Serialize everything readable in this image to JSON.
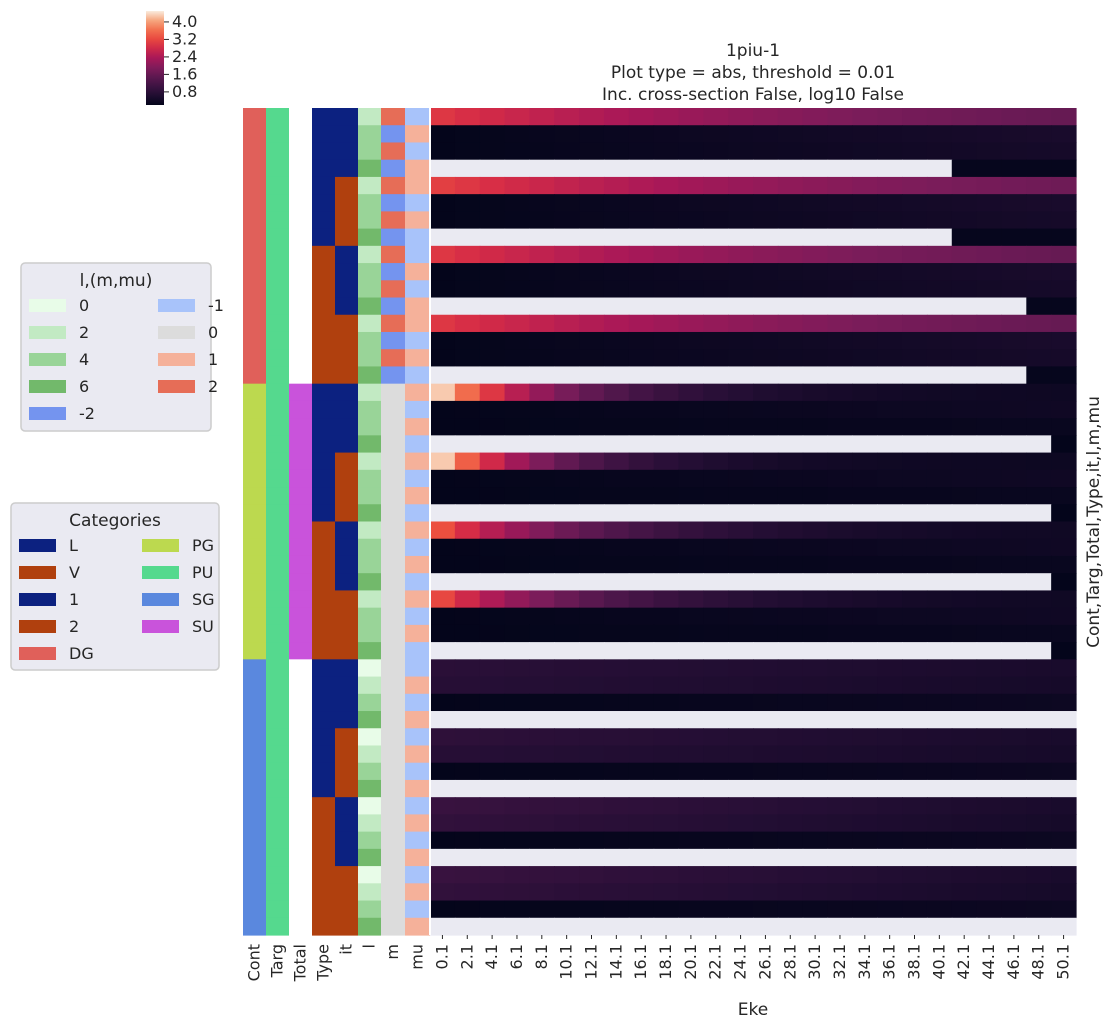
{
  "chart_data": {
    "type": "heatmap",
    "title_lines": [
      "1piu-1",
      "Plot type = abs, threshold = 0.01",
      "Inc. cross-section False, log10 False"
    ],
    "xlabel": "Eke",
    "ylabel": "Cont,Targ,Total,Type,it,l,m,mu",
    "x_ticks": [
      "0.1",
      "2.1",
      "4.1",
      "6.1",
      "8.1",
      "10.1",
      "12.1",
      "14.1",
      "16.1",
      "18.1",
      "20.1",
      "22.1",
      "24.1",
      "26.1",
      "28.1",
      "30.1",
      "32.1",
      "34.1",
      "36.1",
      "38.1",
      "40.1",
      "42.1",
      "44.1",
      "46.1",
      "48.1",
      "50.1"
    ],
    "annotation_columns": [
      "Cont",
      "Targ",
      "Total",
      "Type",
      "it",
      "l",
      "m",
      "mu"
    ],
    "colorbar": {
      "ticks": [
        "4.0",
        "3.2",
        "2.4",
        "1.6",
        "0.8"
      ],
      "tick_values": [
        4.0,
        3.2,
        2.4,
        1.6,
        0.8
      ],
      "range": [
        0.2,
        4.5
      ]
    },
    "annotation_rows": [
      [
        "DG",
        "PU",
        "",
        "L",
        "1",
        "2",
        "2",
        "-1"
      ],
      [
        "DG",
        "PU",
        "",
        "L",
        "1",
        "4",
        "-2",
        "1"
      ],
      [
        "DG",
        "PU",
        "",
        "L",
        "1",
        "4",
        "2",
        "-1"
      ],
      [
        "DG",
        "PU",
        "",
        "L",
        "1",
        "6",
        "-2",
        "1"
      ],
      [
        "DG",
        "PU",
        "",
        "L",
        "2",
        "2",
        "2",
        "1"
      ],
      [
        "DG",
        "PU",
        "",
        "L",
        "2",
        "4",
        "-2",
        "-1"
      ],
      [
        "DG",
        "PU",
        "",
        "L",
        "2",
        "4",
        "2",
        "1"
      ],
      [
        "DG",
        "PU",
        "",
        "L",
        "2",
        "6",
        "-2",
        "-1"
      ],
      [
        "DG",
        "PU",
        "",
        "V",
        "1",
        "2",
        "2",
        "-1"
      ],
      [
        "DG",
        "PU",
        "",
        "V",
        "1",
        "4",
        "-2",
        "1"
      ],
      [
        "DG",
        "PU",
        "",
        "V",
        "1",
        "4",
        "2",
        "-1"
      ],
      [
        "DG",
        "PU",
        "",
        "V",
        "1",
        "6",
        "-2",
        "1"
      ],
      [
        "DG",
        "PU",
        "",
        "V",
        "2",
        "2",
        "2",
        "1"
      ],
      [
        "DG",
        "PU",
        "",
        "V",
        "2",
        "4",
        "-2",
        "-1"
      ],
      [
        "DG",
        "PU",
        "",
        "V",
        "2",
        "4",
        "2",
        "1"
      ],
      [
        "DG",
        "PU",
        "",
        "V",
        "2",
        "6",
        "-2",
        "-1"
      ],
      [
        "PG",
        "PU",
        "SU",
        "L",
        "1",
        "2",
        "0",
        "1"
      ],
      [
        "PG",
        "PU",
        "SU",
        "L",
        "1",
        "4",
        "0",
        "-1"
      ],
      [
        "PG",
        "PU",
        "SU",
        "L",
        "1",
        "4",
        "0",
        "1"
      ],
      [
        "PG",
        "PU",
        "SU",
        "L",
        "1",
        "6",
        "0",
        "-1"
      ],
      [
        "PG",
        "PU",
        "SU",
        "L",
        "2",
        "2",
        "0",
        "1"
      ],
      [
        "PG",
        "PU",
        "SU",
        "L",
        "2",
        "4",
        "0",
        "-1"
      ],
      [
        "PG",
        "PU",
        "SU",
        "L",
        "2",
        "4",
        "0",
        "1"
      ],
      [
        "PG",
        "PU",
        "SU",
        "L",
        "2",
        "6",
        "0",
        "-1"
      ],
      [
        "PG",
        "PU",
        "SU",
        "V",
        "1",
        "2",
        "0",
        "1"
      ],
      [
        "PG",
        "PU",
        "SU",
        "V",
        "1",
        "4",
        "0",
        "-1"
      ],
      [
        "PG",
        "PU",
        "SU",
        "V",
        "1",
        "4",
        "0",
        "1"
      ],
      [
        "PG",
        "PU",
        "SU",
        "V",
        "1",
        "6",
        "0",
        "-1"
      ],
      [
        "PG",
        "PU",
        "SU",
        "V",
        "2",
        "2",
        "0",
        "1"
      ],
      [
        "PG",
        "PU",
        "SU",
        "V",
        "2",
        "4",
        "0",
        "-1"
      ],
      [
        "PG",
        "PU",
        "SU",
        "V",
        "2",
        "4",
        "0",
        "1"
      ],
      [
        "PG",
        "PU",
        "SU",
        "V",
        "2",
        "6",
        "0",
        "-1"
      ],
      [
        "SG",
        "PU",
        "",
        "L",
        "1",
        "0",
        "0",
        "-1"
      ],
      [
        "SG",
        "PU",
        "",
        "L",
        "1",
        "2",
        "0",
        "1"
      ],
      [
        "SG",
        "PU",
        "",
        "L",
        "1",
        "4",
        "0",
        "-1"
      ],
      [
        "SG",
        "PU",
        "",
        "L",
        "1",
        "6",
        "0",
        "1"
      ],
      [
        "SG",
        "PU",
        "",
        "L",
        "2",
        "0",
        "0",
        "-1"
      ],
      [
        "SG",
        "PU",
        "",
        "L",
        "2",
        "2",
        "0",
        "1"
      ],
      [
        "SG",
        "PU",
        "",
        "L",
        "2",
        "4",
        "0",
        "-1"
      ],
      [
        "SG",
        "PU",
        "",
        "L",
        "2",
        "6",
        "0",
        "1"
      ],
      [
        "SG",
        "PU",
        "",
        "V",
        "1",
        "0",
        "0",
        "-1"
      ],
      [
        "SG",
        "PU",
        "",
        "V",
        "1",
        "2",
        "0",
        "1"
      ],
      [
        "SG",
        "PU",
        "",
        "V",
        "1",
        "4",
        "0",
        "-1"
      ],
      [
        "SG",
        "PU",
        "",
        "V",
        "1",
        "6",
        "0",
        "1"
      ],
      [
        "SG",
        "PU",
        "",
        "V",
        "2",
        "0",
        "0",
        "-1"
      ],
      [
        "SG",
        "PU",
        "",
        "V",
        "2",
        "2",
        "0",
        "1"
      ],
      [
        "SG",
        "PU",
        "",
        "V",
        "2",
        "4",
        "0",
        "-1"
      ],
      [
        "SG",
        "PU",
        "",
        "V",
        "2",
        "6",
        "0",
        "1"
      ]
    ],
    "rows": [
      {
        "kind": "bright",
        "start": 3.0,
        "end": 1.2,
        "fall": 1.5
      },
      {
        "kind": "dark",
        "start": 0.22,
        "end": 0.55
      },
      {
        "kind": "dark",
        "start": 0.22,
        "end": 0.5
      },
      {
        "kind": "cut",
        "start": 0.2,
        "end": 0.25,
        "cut_index": 21
      },
      {
        "kind": "bright",
        "start": 3.1,
        "end": 1.3,
        "fall": 1.5
      },
      {
        "kind": "dark",
        "start": 0.22,
        "end": 0.55
      },
      {
        "kind": "dark",
        "start": 0.22,
        "end": 0.5
      },
      {
        "kind": "cut",
        "start": 0.2,
        "end": 0.25,
        "cut_index": 21
      },
      {
        "kind": "bright",
        "start": 3.0,
        "end": 1.2,
        "fall": 1.5
      },
      {
        "kind": "dark",
        "start": 0.22,
        "end": 0.55
      },
      {
        "kind": "dark",
        "start": 0.22,
        "end": 0.5
      },
      {
        "kind": "cut",
        "start": 0.2,
        "end": 0.25,
        "cut_index": 24
      },
      {
        "kind": "bright",
        "start": 3.0,
        "end": 1.2,
        "fall": 1.5
      },
      {
        "kind": "dark",
        "start": 0.22,
        "end": 0.55
      },
      {
        "kind": "dark",
        "start": 0.22,
        "end": 0.5
      },
      {
        "kind": "cut",
        "start": 0.2,
        "end": 0.25,
        "cut_index": 24
      },
      {
        "kind": "peak",
        "start": 4.3,
        "end": 0.35,
        "fall": 5
      },
      {
        "kind": "dark",
        "start": 0.22,
        "end": 0.4
      },
      {
        "kind": "dark",
        "start": 0.22,
        "end": 0.3
      },
      {
        "kind": "cut",
        "start": 0.2,
        "end": 0.22,
        "cut_index": 25
      },
      {
        "kind": "peak",
        "start": 4.3,
        "end": 0.35,
        "fall": 6
      },
      {
        "kind": "dark",
        "start": 0.22,
        "end": 0.4
      },
      {
        "kind": "dark",
        "start": 0.22,
        "end": 0.3
      },
      {
        "kind": "cut",
        "start": 0.2,
        "end": 0.22,
        "cut_index": 25
      },
      {
        "kind": "peak",
        "start": 3.3,
        "end": 0.35,
        "fall": 4
      },
      {
        "kind": "dark",
        "start": 0.22,
        "end": 0.4
      },
      {
        "kind": "dark",
        "start": 0.22,
        "end": 0.3
      },
      {
        "kind": "cut",
        "start": 0.2,
        "end": 0.22,
        "cut_index": 25
      },
      {
        "kind": "peak",
        "start": 3.2,
        "end": 0.35,
        "fall": 4
      },
      {
        "kind": "dark",
        "start": 0.22,
        "end": 0.4
      },
      {
        "kind": "dark",
        "start": 0.22,
        "end": 0.3
      },
      {
        "kind": "cut",
        "start": 0.2,
        "end": 0.22,
        "cut_index": 25
      },
      {
        "kind": "mid",
        "start": 0.8,
        "end": 0.55
      },
      {
        "kind": "mid",
        "start": 0.75,
        "end": 0.5
      },
      {
        "kind": "dark",
        "start": 0.22,
        "end": 0.35
      },
      {
        "kind": "cut",
        "start": 0.2,
        "end": 0.22,
        "cut_index": 28
      },
      {
        "kind": "mid",
        "start": 0.85,
        "end": 0.55
      },
      {
        "kind": "mid",
        "start": 0.75,
        "end": 0.5
      },
      {
        "kind": "dark",
        "start": 0.22,
        "end": 0.35
      },
      {
        "kind": "cut",
        "start": 0.2,
        "end": 0.22,
        "cut_index": 28
      },
      {
        "kind": "mid",
        "start": 1.0,
        "end": 0.55
      },
      {
        "kind": "mid",
        "start": 0.9,
        "end": 0.5
      },
      {
        "kind": "dark",
        "start": 0.22,
        "end": 0.35
      },
      {
        "kind": "cut",
        "start": 0.2,
        "end": 0.22,
        "cut_index": 29
      },
      {
        "kind": "mid",
        "start": 1.0,
        "end": 0.55
      },
      {
        "kind": "mid",
        "start": 0.9,
        "end": 0.5
      },
      {
        "kind": "dark",
        "start": 0.22,
        "end": 0.35
      },
      {
        "kind": "cut",
        "start": 0.2,
        "end": 0.22,
        "cut_index": 29
      }
    ],
    "legend_lm": {
      "title": "l,(m,mu)",
      "entries": [
        {
          "label": "0",
          "color": "#e8fce8"
        },
        {
          "label": "2",
          "color": "#c2eac3"
        },
        {
          "label": "4",
          "color": "#99d498"
        },
        {
          "label": "6",
          "color": "#72b96b"
        },
        {
          "label": "-2",
          "color": "#7494ef"
        },
        {
          "label": "-1",
          "color": "#a8c3fa"
        },
        {
          "label": "0",
          "color": "#dcdcdc"
        },
        {
          "label": "1",
          "color": "#f5b19a"
        },
        {
          "label": "2",
          "color": "#e66d57"
        }
      ]
    },
    "legend_cat": {
      "title": "Categories",
      "entries": [
        {
          "label": "L",
          "color": "#0c2180"
        },
        {
          "label": "V",
          "color": "#b0400e"
        },
        {
          "label": "1",
          "color": "#0c2180"
        },
        {
          "label": "2",
          "color": "#b0400e"
        },
        {
          "label": "DG",
          "color": "#e0605a"
        },
        {
          "label": "PG",
          "color": "#bcd94f"
        },
        {
          "label": "PU",
          "color": "#55d98e"
        },
        {
          "label": "SG",
          "color": "#5a88de"
        },
        {
          "label": "SU",
          "color": "#c953db"
        }
      ]
    },
    "annotation_colors": {
      "Cont": {
        "DG": "#e0605a",
        "PG": "#bcd94f",
        "SG": "#5a88de"
      },
      "Targ": {
        "PU": "#55d98e"
      },
      "Total": {
        "SU": "#c953db",
        "": "#ffffff"
      },
      "Type": {
        "L": "#0c2180",
        "V": "#b0400e"
      },
      "it": {
        "1": "#0c2180",
        "2": "#b0400e"
      },
      "l": {
        "0": "#e8fce8",
        "2": "#c2eac3",
        "4": "#99d498",
        "6": "#72b96b"
      },
      "m": {
        "-2": "#7494ef",
        "-1": "#a8c3fa",
        "0": "#dcdcdc",
        "1": "#f5b19a",
        "2": "#e66d57"
      },
      "mu": {
        "-2": "#7494ef",
        "-1": "#a8c3fa",
        "0": "#dcdcdc",
        "1": "#f5b19a",
        "2": "#e66d57"
      }
    },
    "missing_color": "#eaeaf2",
    "colormap": "rocket"
  }
}
